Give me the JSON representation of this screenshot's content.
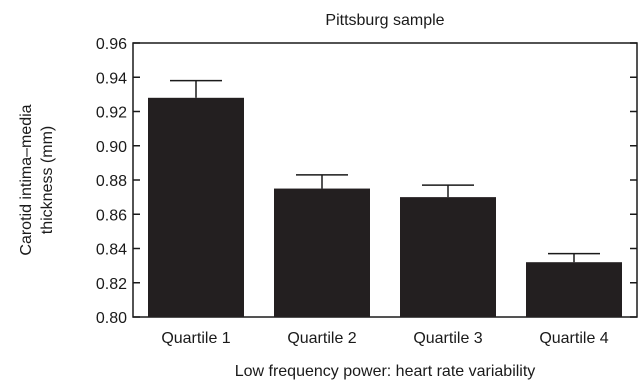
{
  "chart_data": {
    "type": "bar",
    "title": "Pittsburg sample",
    "xlabel": "Low frequency power: heart rate variability",
    "ylabel_lines": [
      "Carotid intima–media",
      "thickness (mm)"
    ],
    "categories": [
      "Quartile 1",
      "Quartile 2",
      "Quartile 3",
      "Quartile 4"
    ],
    "values": [
      0.928,
      0.875,
      0.87,
      0.832
    ],
    "error_upper": [
      0.938,
      0.883,
      0.877,
      0.837
    ],
    "ylim": [
      0.8,
      0.96
    ],
    "yticks": [
      "0.80",
      "0.82",
      "0.84",
      "0.86",
      "0.88",
      "0.90",
      "0.92",
      "0.94",
      "0.96"
    ],
    "grid": false,
    "colors": {
      "bar": "#231f20",
      "axis": "#1a1a1a"
    }
  }
}
